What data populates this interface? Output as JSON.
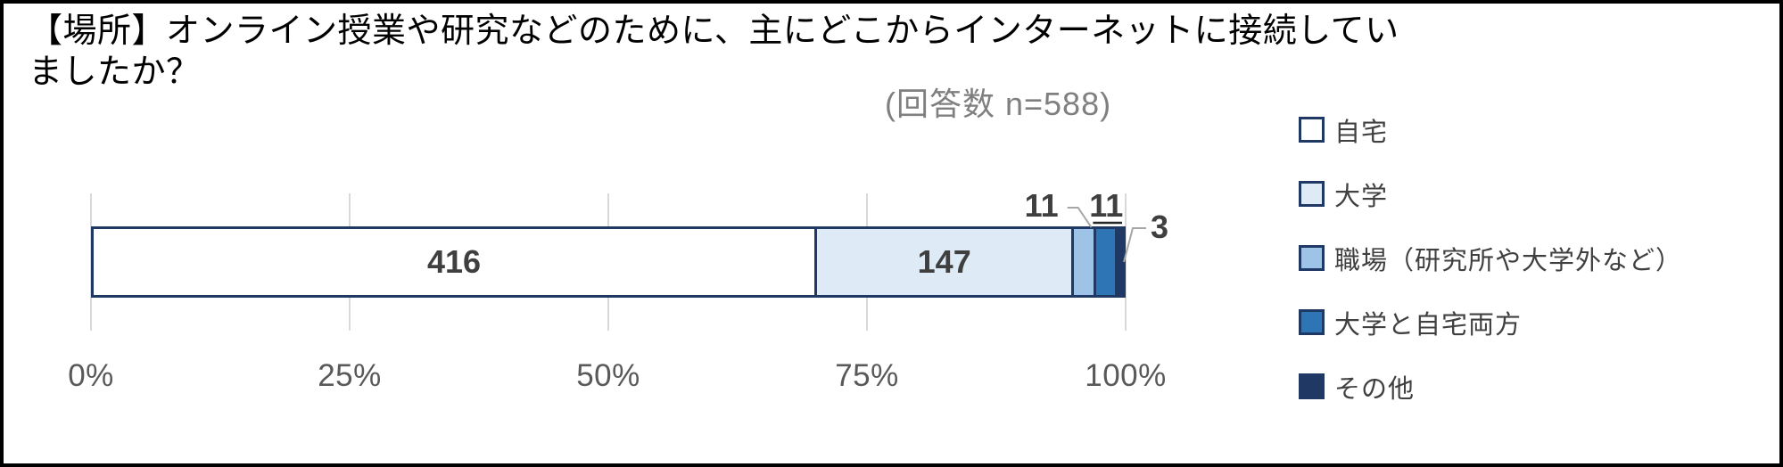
{
  "title": "【場所】オンライン授業や研究などのために、主にどこからインターネットに接続していましたか？",
  "subtitle": "(回答数 n=588)",
  "chart_data": {
    "type": "bar",
    "orientation": "horizontal_stacked",
    "total": 588,
    "series": [
      {
        "name": "自宅",
        "value": 416,
        "color": "#FFFFFF"
      },
      {
        "name": "大学",
        "value": 147,
        "color": "#DEEBF7"
      },
      {
        "name": "職場（研究所や大学外など）",
        "value": 11,
        "color": "#9DC3E6"
      },
      {
        "name": "大学と自宅両方",
        "value": 11,
        "color": "#2E75B6"
      },
      {
        "name": "その他",
        "value": 3,
        "color": "#1F3864"
      }
    ],
    "x_ticks": [
      "0%",
      "25%",
      "50%",
      "75%",
      "100%"
    ],
    "xlim": [
      0,
      100
    ],
    "grid": true,
    "legend_position": "right",
    "colors": {
      "bar_border": "#1F3864",
      "gridline": "#D9D9D9",
      "axis_label": "#595959",
      "data_label": "#3F3F3F",
      "legend_text": "#404040",
      "leader_line": "#A6A6A6",
      "leader_underline": "#262626"
    }
  }
}
